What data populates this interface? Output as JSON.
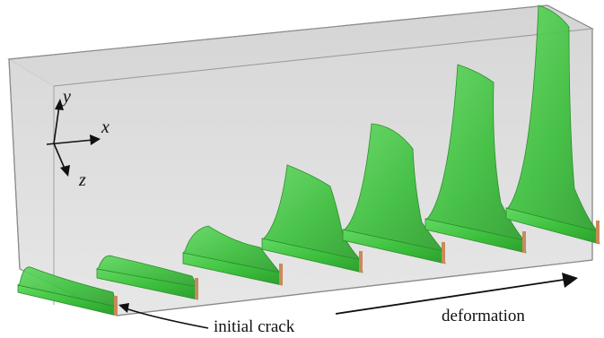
{
  "axes": {
    "x_label": "x",
    "y_label": "y",
    "z_label": "z"
  },
  "annotations": {
    "initial_crack": "initial crack",
    "deformation": "deformation"
  },
  "colors": {
    "box_face": "#e0e0e0",
    "box_edge": "#8c8c8c",
    "crack_green": "#3fbf3f",
    "crack_green_dark": "#2a9a2a",
    "crack_base": "#c98a5a"
  },
  "sequence": {
    "stages": 7,
    "trend": "crack surface grows taller with deformation"
  }
}
